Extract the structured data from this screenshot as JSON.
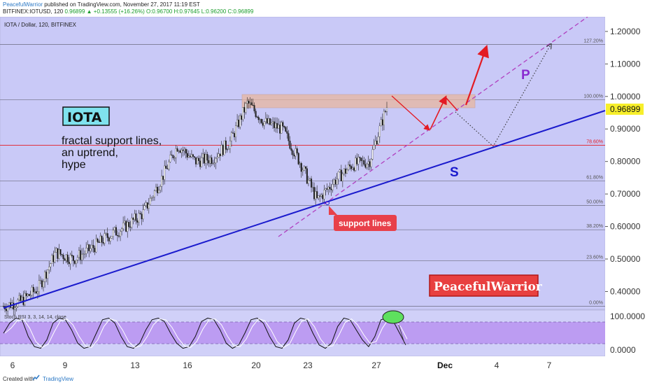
{
  "header": {
    "author": "PeacefulWarrior",
    "published": "published on TradingView.com, November 27, 2017 11:19 EST",
    "ohlc_prefix": "BITFINEX:IOTUSD, 120",
    "ohlc_last": "0.96899",
    "ohlc_change": "▲ +0.13555 (+16.26%)",
    "ohlc_rest": "O:0.96700 H:0.97645 L:0.96200 C:0.96899"
  },
  "chart": {
    "symbol_title": "IOTA / Dollar, 120, BITFINEX",
    "stoch_label": "Stoch RSI  3, 3, 14, 14, close",
    "current_price_label": "0.96899",
    "annotations": {
      "iota_box": "IOTA",
      "notes": [
        "fractal support lines,",
        "an uptrend,",
        "hype"
      ],
      "support_callout": "support lines",
      "s_label": "S",
      "p_label": "P",
      "brand": "PeacefulWarrior"
    },
    "fib_levels": [
      {
        "label": "127.20%",
        "value": 1.16
      },
      {
        "label": "100.00%",
        "value": 0.99
      },
      {
        "label": "78.60%",
        "value": 0.85
      },
      {
        "label": "61.80%",
        "value": 0.74
      },
      {
        "label": "50.00%",
        "value": 0.665
      },
      {
        "label": "38.20%",
        "value": 0.59
      },
      {
        "label": "23.60%",
        "value": 0.495
      },
      {
        "label": "0.00%",
        "value": 0.355
      }
    ]
  },
  "chart_data": {
    "type": "line",
    "title": "IOTA / Dollar, 120, BITFINEX",
    "y_ticks": [
      "1.20000",
      "1.10000",
      "1.00000",
      "0.90000",
      "0.80000",
      "0.70000",
      "0.60000",
      "0.50000",
      "0.40000"
    ],
    "x_ticks": [
      "6",
      "9",
      "13",
      "16",
      "20",
      "23",
      "27",
      "Dec",
      "4",
      "7"
    ],
    "ylim": [
      0.345,
      1.245
    ],
    "x": [
      "6",
      "7",
      "8",
      "9",
      "10",
      "11",
      "12",
      "13",
      "14",
      "15",
      "16",
      "17",
      "18",
      "19",
      "20",
      "21",
      "22",
      "23",
      "24",
      "25",
      "26",
      "27",
      "28"
    ],
    "series": [
      {
        "values": [
          0.355,
          0.37,
          0.41,
          0.52,
          0.5,
          0.53,
          0.57,
          0.6,
          0.64,
          0.74,
          0.85,
          0.8,
          0.81,
          0.86,
          0.98,
          0.92,
          0.9,
          0.8,
          0.68,
          0.74,
          0.79,
          0.8,
          0.969
        ]
      }
    ],
    "stoch_ylim": [
      0,
      100
    ],
    "stoch_ticks": [
      "100.0000",
      "0.0000"
    ],
    "stoch_k": [
      50,
      80,
      95,
      90,
      40,
      10,
      5,
      30,
      80,
      95,
      90,
      60,
      20,
      5,
      10,
      50,
      90,
      95,
      80,
      40,
      10,
      5,
      20,
      60,
      90,
      95,
      85,
      50,
      20,
      5,
      10,
      40,
      85,
      95,
      90,
      60,
      20,
      5,
      15,
      50,
      90,
      95,
      80,
      40,
      10,
      5,
      30,
      80,
      95,
      90,
      50,
      15,
      5,
      20,
      70,
      95,
      90,
      60,
      30,
      10,
      40,
      90,
      95,
      85,
      50,
      15
    ]
  },
  "footer": {
    "created": "Created with",
    "brand": "TradingView"
  }
}
